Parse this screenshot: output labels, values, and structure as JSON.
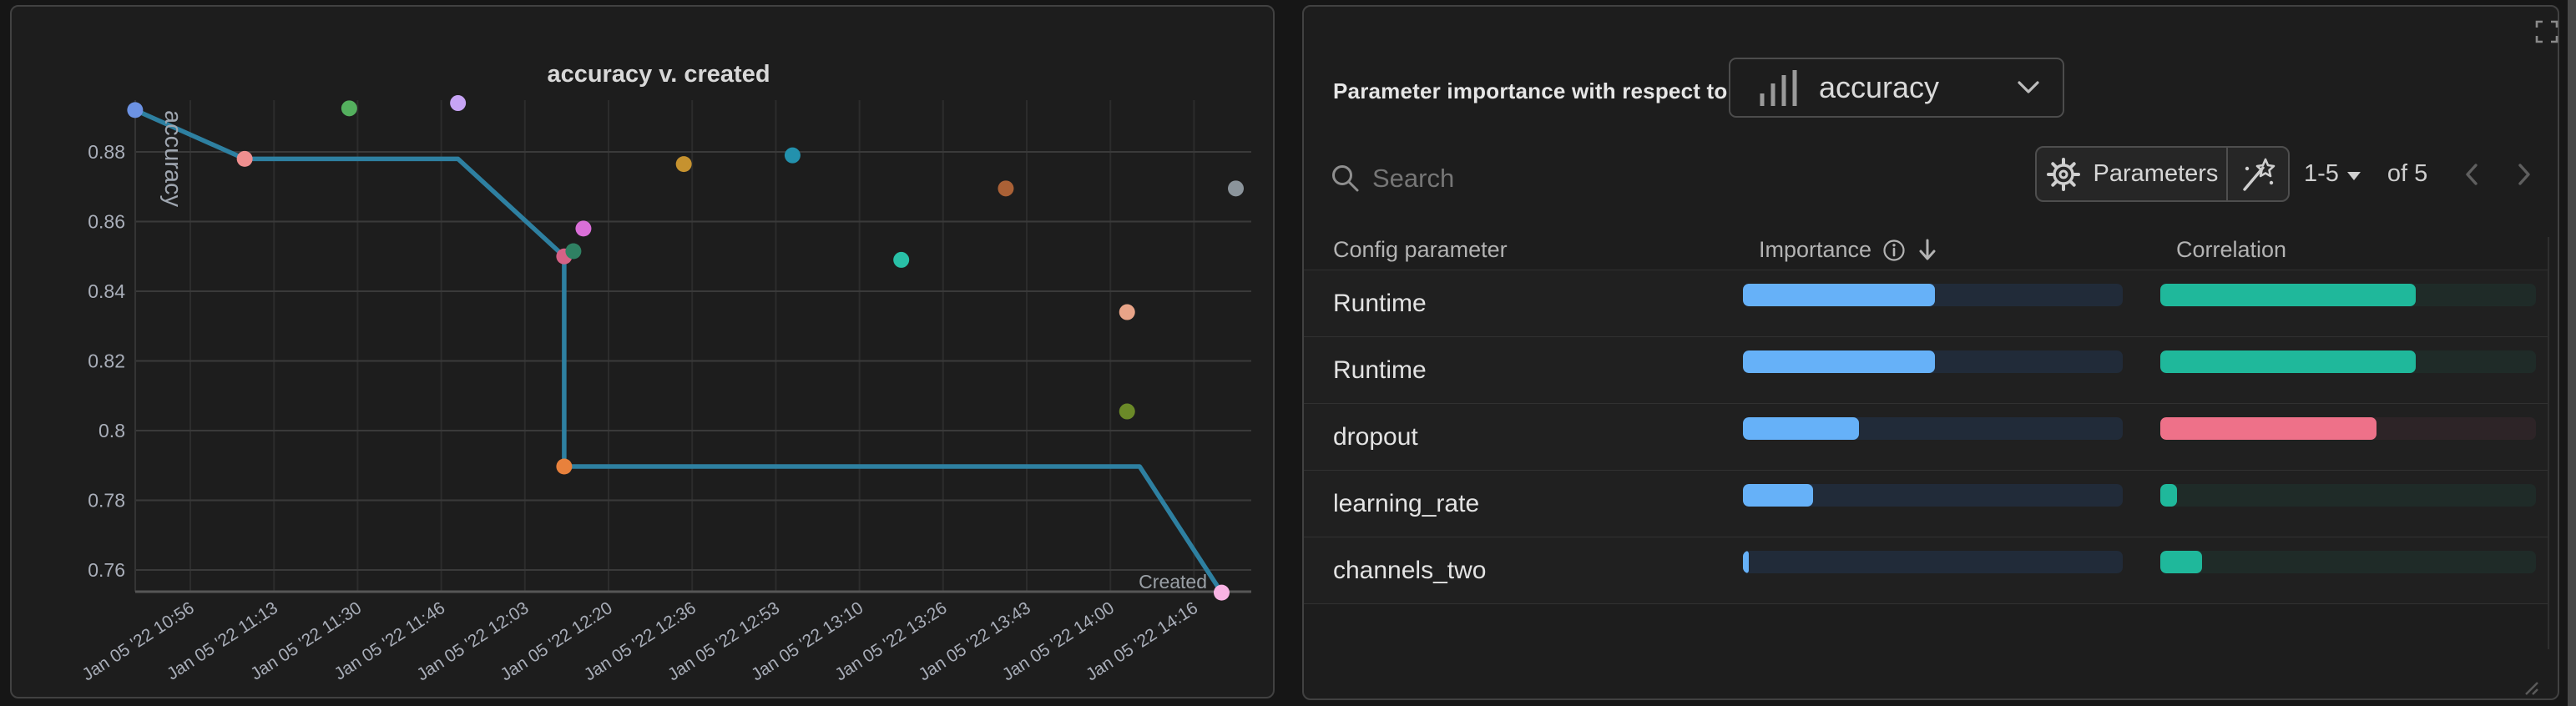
{
  "chart_data": {
    "type": "scatter",
    "title": "accuracy v. created",
    "xlabel": "Created",
    "ylabel": "accuracy",
    "x_axis": {
      "tick_labels": [
        "Jan 05 '22 10:56",
        "Jan 05 '22 11:13",
        "Jan 05 '22 11:30",
        "Jan 05 '22 11:46",
        "Jan 05 '22 12:03",
        "Jan 05 '22 12:20",
        "Jan 05 '22 12:36",
        "Jan 05 '22 12:53",
        "Jan 05 '22 13:10",
        "Jan 05 '22 13:26",
        "Jan 05 '22 13:43",
        "Jan 05 '22 14:00",
        "Jan 05 '22 14:16"
      ],
      "range_ticks": [
        -0.66,
        12.68
      ]
    },
    "y_axis": {
      "tick_labels": [
        "0.88",
        "0.86",
        "0.84",
        "0.82",
        "0.8",
        "0.78",
        "0.76"
      ],
      "tick_values": [
        0.88,
        0.86,
        0.84,
        0.82,
        0.8,
        0.78,
        0.76
      ],
      "range": [
        0.7537,
        0.8948
      ]
    },
    "grid": true,
    "points": [
      {
        "x": -0.66,
        "y": 0.892,
        "time": "Jan 05 '22 10:45",
        "color": "#6c92e3"
      },
      {
        "x": 0.65,
        "y": 0.878,
        "time": "Jan 05 '22 11:07",
        "color": "#ef8f8f"
      },
      {
        "x": 1.9,
        "y": 0.8925,
        "time": "Jan 05 '22 11:28",
        "color": "#54b05e"
      },
      {
        "x": 3.2,
        "y": 0.894,
        "time": "Jan 05 '22 11:49",
        "color": "#c7a4f5"
      },
      {
        "x": 4.47,
        "y": 0.85,
        "time": "Jan 05 '22 12:11",
        "color": "#d56286"
      },
      {
        "x": 4.58,
        "y": 0.8515,
        "time": "Jan 05 '22 12:12",
        "color": "#2f8163"
      },
      {
        "x": 4.7,
        "y": 0.858,
        "time": "Jan 05 '22 12:14",
        "color": "#da6fd8"
      },
      {
        "x": 5.9,
        "y": 0.8765,
        "time": "Jan 05 '22 12:34",
        "color": "#c6922f"
      },
      {
        "x": 7.2,
        "y": 0.879,
        "time": "Jan 05 '22 12:56",
        "color": "#2391ad"
      },
      {
        "x": 8.5,
        "y": 0.849,
        "time": "Jan 05 '22 13:18",
        "color": "#29c0a7"
      },
      {
        "x": 9.75,
        "y": 0.8695,
        "time": "Jan 05 '22 13:39",
        "color": "#aa6136"
      },
      {
        "x": 11.2,
        "y": 0.834,
        "time": "Jan 05 '22 14:03",
        "color": "#e8a488"
      },
      {
        "x": 12.5,
        "y": 0.8695,
        "time": "Jan 05 '22 14:24",
        "color": "#8b949b"
      },
      {
        "x": 4.47,
        "y": 0.7897,
        "time": "Jan 05 '22 12:11",
        "color": "#e8813c"
      },
      {
        "x": 11.2,
        "y": 0.8055,
        "time": "Jan 05 '22 14:03",
        "color": "#6b8a28"
      },
      {
        "x": 12.33,
        "y": 0.7535,
        "time": "Jan 05 '22 14:21",
        "color": "#f9b3e4"
      }
    ],
    "frontier_line": {
      "color": "#2e80a1",
      "points": [
        [
          -0.66,
          0.892
        ],
        [
          0.65,
          0.878
        ],
        [
          3.2,
          0.878
        ],
        [
          4.47,
          0.85
        ],
        [
          4.47,
          0.7897
        ],
        [
          11.35,
          0.7897
        ],
        [
          12.33,
          0.7535
        ]
      ]
    }
  },
  "right_panel": {
    "header": {
      "label": "Parameter importance with respect to",
      "metric_select": {
        "value": "accuracy",
        "icon": "bar-chart-icon"
      }
    },
    "toolbar": {
      "search_placeholder": "Search",
      "parameters_button_label": "Parameters",
      "pagination": {
        "range": "1-5",
        "total": "of 5"
      }
    },
    "table": {
      "columns": {
        "parameter": "Config parameter",
        "importance": "Importance",
        "correlation": "Correlation"
      },
      "rows": [
        {
          "parameter": "Runtime",
          "importance": 0.505,
          "correlation": 0.68,
          "correlation_sign": "positive"
        },
        {
          "parameter": "Runtime",
          "importance": 0.505,
          "correlation": 0.68,
          "correlation_sign": "positive"
        },
        {
          "parameter": "dropout",
          "importance": 0.305,
          "correlation": 0.575,
          "correlation_sign": "negative"
        },
        {
          "parameter": "learning_rate",
          "importance": 0.185,
          "correlation": 0.045,
          "correlation_sign": "positive"
        },
        {
          "parameter": "channels_two",
          "importance": 0.015,
          "correlation": 0.11,
          "correlation_sign": "positive"
        }
      ]
    },
    "colors": {
      "importance_fill": "#66b1f8",
      "importance_track": "#212b39",
      "correlation_positive_fill": "#1fb89b",
      "correlation_positive_track": "#1f2b28",
      "correlation_negative_fill": "#ee7189",
      "correlation_negative_track": "#2d2427"
    }
  }
}
